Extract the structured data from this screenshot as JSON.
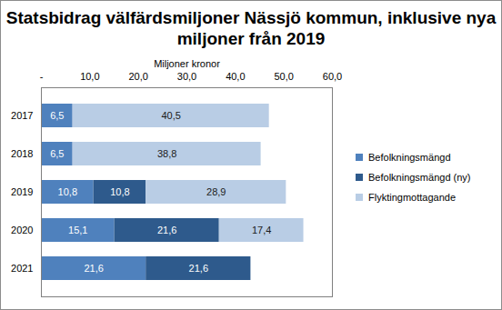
{
  "chart_data": {
    "type": "bar",
    "title": "Statsbidrag välfärdsmiljoner Nässjö kommun, inklusive nya miljoner från 2019",
    "orientation": "horizontal",
    "stacked": true,
    "data_labels": true,
    "legend": "right",
    "grid": false,
    "x_label": "Miljoner kronor",
    "categories": [
      "2017",
      "2018",
      "2019",
      "2020",
      "2021"
    ],
    "series": [
      {
        "name": "Befolkningsmängd",
        "color": "#4f81bd",
        "values": [
          6.5,
          6.5,
          10.8,
          15.1,
          21.6
        ],
        "value_labels": [
          "6,5",
          "6,5",
          "10,8",
          "15,1",
          "21,6"
        ]
      },
      {
        "name": "Befolkningsmängd (ny)",
        "color": "#2e5a8c",
        "values": [
          null,
          null,
          10.8,
          21.6,
          21.6
        ],
        "value_labels": [
          null,
          null,
          "10,8",
          "21,6",
          "21,6"
        ]
      },
      {
        "name": "Flyktingmottagande",
        "color": "#b9cde5",
        "values": [
          40.5,
          38.8,
          28.9,
          17.4,
          null
        ],
        "value_labels": [
          "40,5",
          "38,8",
          "28,9",
          "17,4",
          null
        ]
      }
    ],
    "xlim": [
      0,
      60
    ],
    "xticks": [
      {
        "value": 0,
        "label": "-"
      },
      {
        "value": 10,
        "label": "10,0"
      },
      {
        "value": 20,
        "label": "20,0"
      },
      {
        "value": 30,
        "label": "30,0"
      },
      {
        "value": 40,
        "label": "40,0"
      },
      {
        "value": 50,
        "label": "50,0"
      },
      {
        "value": 60,
        "label": "60,0"
      }
    ]
  }
}
